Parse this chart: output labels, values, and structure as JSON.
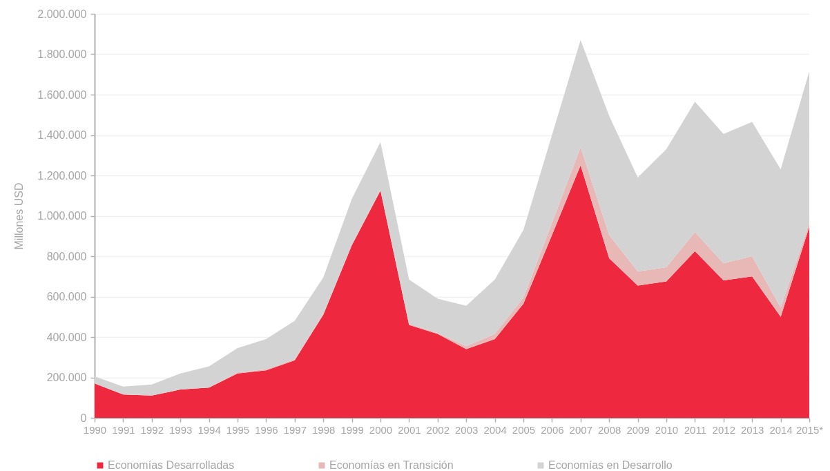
{
  "chart_data": {
    "type": "area",
    "stacked": true,
    "ylabel": "Millones USD",
    "categories": [
      "1990",
      "1991",
      "1992",
      "1993",
      "1994",
      "1995",
      "1996",
      "1997",
      "1998",
      "1999",
      "2000",
      "2001",
      "2002",
      "2003",
      "2004",
      "2005",
      "2006",
      "2007",
      "2008",
      "2009",
      "2010",
      "2011",
      "2012",
      "2013",
      "2014",
      "2015*"
    ],
    "series": [
      {
        "name": "Economías Desarrolladas",
        "color": "#ee283f",
        "values": [
          170000,
          115000,
          110000,
          140000,
          150000,
          220000,
          235000,
          285000,
          510000,
          855000,
          1125000,
          460000,
          415000,
          340000,
          390000,
          565000,
          905000,
          1250000,
          790000,
          655000,
          675000,
          825000,
          680000,
          700000,
          500000,
          945000
        ]
      },
      {
        "name": "Economías en Transición",
        "color": "#e8b8b6",
        "values": [
          0,
          0,
          0,
          0,
          0,
          5000,
          5000,
          5000,
          5000,
          5000,
          5000,
          5000,
          5000,
          15000,
          25000,
          30000,
          60000,
          90000,
          115000,
          70000,
          70000,
          95000,
          85000,
          100000,
          45000,
          20000
        ]
      },
      {
        "name": "Economías en Desarrollo",
        "color": "#d3d3d3",
        "values": [
          35000,
          40000,
          55000,
          80000,
          105000,
          120000,
          150000,
          190000,
          180000,
          225000,
          235000,
          220000,
          170000,
          200000,
          270000,
          335000,
          435000,
          530000,
          590000,
          465000,
          585000,
          645000,
          640000,
          665000,
          685000,
          750000
        ]
      }
    ],
    "ylim": [
      0,
      2000000
    ],
    "yticks": [
      0,
      {
        "value": 200000,
        "label": "200.000"
      },
      {
        "value": 400000,
        "label": "400.000"
      },
      {
        "value": 600000,
        "label": "600.000"
      },
      {
        "value": 800000,
        "label": "800.000"
      },
      {
        "value": 1000000,
        "label": "1.000.000"
      },
      {
        "value": 1200000,
        "label": "1.200.000"
      },
      {
        "value": 1400000,
        "label": "1.400.000"
      },
      {
        "value": 1600000,
        "label": "1.600.000"
      },
      {
        "value": 1800000,
        "label": "1.800.000"
      },
      {
        "value": 2000000,
        "label": "2.000.000"
      }
    ],
    "grid": "y",
    "legend": "bottom"
  }
}
